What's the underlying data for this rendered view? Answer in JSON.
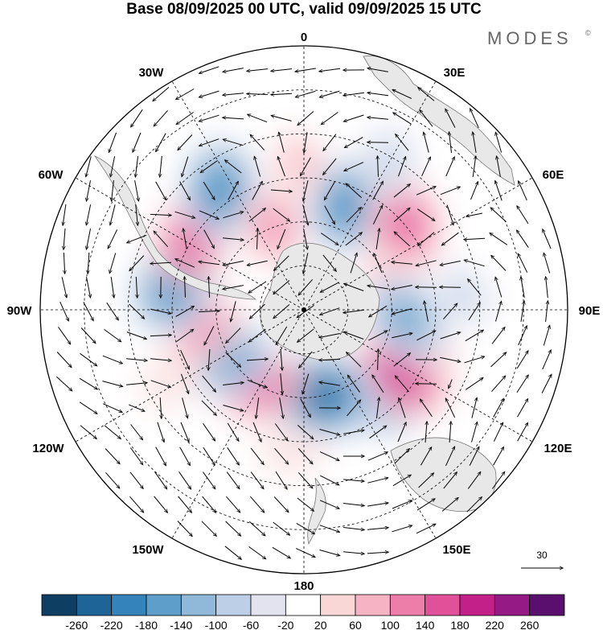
{
  "title": "Base 08/09/2025 00 UTC, valid 09/09/2025 15 UTC",
  "brand": "MODES",
  "brand_mark": "©",
  "longitude_labels": {
    "lon_0": "0",
    "lon_30e": "30E",
    "lon_60e": "60E",
    "lon_90e": "90E",
    "lon_120e": "120E",
    "lon_150e": "150E",
    "lon_180": "180",
    "lon_150w": "150W",
    "lon_120w": "120W",
    "lon_90w": "90W",
    "lon_60w": "60W",
    "lon_30w": "30W"
  },
  "reference_vector": {
    "label": "30"
  },
  "colorbar": {
    "ticks": [
      "-260",
      "-220",
      "-180",
      "-140",
      "-100",
      "-60",
      "-20",
      "20",
      "60",
      "100",
      "140",
      "180",
      "220",
      "260"
    ],
    "colors": [
      "#0e3f63",
      "#1f6497",
      "#3583bb",
      "#5d9ecb",
      "#8fb8d9",
      "#bccfe7",
      "#e3e3f0",
      "#ffffff",
      "#f9d7d7",
      "#f6b3c3",
      "#ed7eaa",
      "#e0519a",
      "#c4208a",
      "#961a86",
      "#5a0e6e"
    ]
  },
  "anomalies": [
    {
      "lon": -40,
      "lat": -49,
      "value": -140
    },
    {
      "lon": -57,
      "lat": -50,
      "value": 200
    },
    {
      "lon": -72,
      "lat": -45,
      "value": 40
    },
    {
      "lon": -12,
      "lat": -60,
      "value": -230
    },
    {
      "lon": 30,
      "lat": -60,
      "value": 150
    },
    {
      "lon": 55,
      "lat": -60,
      "value": -160
    },
    {
      "lon": 80,
      "lat": -55,
      "value": 130
    },
    {
      "lon": 100,
      "lat": -45,
      "value": -200
    },
    {
      "lon": 122,
      "lat": -45,
      "value": 170
    },
    {
      "lon": 145,
      "lat": -40,
      "value": -190
    },
    {
      "lon": 160,
      "lat": -60,
      "value": 110
    },
    {
      "lon": -158,
      "lat": -52,
      "value": -180
    },
    {
      "lon": -130,
      "lat": -45,
      "value": 170
    },
    {
      "lon": -108,
      "lat": -60,
      "value": 60
    },
    {
      "lon": -85,
      "lat": -55,
      "value": -170
    },
    {
      "lon": -95,
      "lat": -35,
      "value": -60
    },
    {
      "lon": 5,
      "lat": -42,
      "value": 50
    },
    {
      "lon": 178,
      "lat": -40,
      "value": 60
    },
    {
      "lon": -150,
      "lat": -32,
      "value": -90
    },
    {
      "lon": 62,
      "lat": -38,
      "value": 40
    }
  ]
}
